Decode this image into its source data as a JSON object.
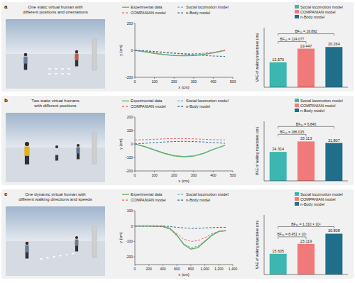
{
  "panels": [
    {
      "letter": "a",
      "caption": [
        "One static virtual human with",
        "different positions and orientations"
      ]
    },
    {
      "letter": "b",
      "caption": [
        "Two static virtual humans",
        "with different positions"
      ]
    },
    {
      "letter": "c",
      "caption": [
        "One dynamic virtual human with",
        "different walking directions and speeds"
      ]
    }
  ],
  "chart_data": [
    {
      "type": "line",
      "x_label": "x (cm)",
      "y_label": "y (cm)",
      "legend": "top",
      "x": [
        0,
        50,
        100,
        150,
        200,
        250,
        300,
        350,
        400,
        460
      ],
      "xlim": [
        0,
        500
      ],
      "xticks": [
        0,
        100,
        200,
        300,
        400,
        500
      ],
      "ylim": [
        -200,
        200
      ],
      "yticks": [
        -200,
        0,
        200
      ],
      "series": [
        {
          "name": "Experimental data",
          "color": "#6aaa50",
          "line_style": "solid",
          "values": [
            0,
            -10,
            -22,
            -32,
            -38,
            -40,
            -38,
            -30,
            -18,
            0
          ]
        },
        {
          "name": "Social locomotion model",
          "color": "#4fbfc6",
          "line_style": "dashed",
          "values": [
            0,
            -9,
            -20,
            -30,
            -36,
            -38,
            -36,
            -29,
            -17,
            0
          ]
        },
        {
          "name": "COMPANIAN model",
          "color": "#e8606a",
          "line_style": "dashed",
          "values": [
            0,
            -5,
            -12,
            -18,
            -22,
            -25,
            -25,
            -22,
            -15,
            0
          ]
        },
        {
          "name": "n-Body model",
          "color": "#2c6e96",
          "line_style": "dashed",
          "values": [
            0,
            -3,
            -8,
            -14,
            -20,
            -26,
            -32,
            -38,
            -42,
            -45
          ]
        }
      ]
    },
    {
      "type": "bar",
      "y_label": "MAE of walking trajectories (cm)",
      "legend": "top-right",
      "data_labels": true,
      "tick_labels": false,
      "categories": [
        "Social locomotion model",
        "COMPANIAN model",
        "n-Body model"
      ],
      "values": [
        12.57,
        19.447,
        20.264
      ],
      "value_labels": [
        "12.570",
        "19.447",
        "20.264"
      ],
      "colors": [
        "#3bb6b0",
        "#f07a7a",
        "#1f6f8b"
      ],
      "ylim": [
        0,
        30
      ],
      "comparisons": [
        {
          "label": "BF₁₀ = 124.077",
          "between": [
            "Social locomotion model",
            "COMPANIAN model"
          ]
        },
        {
          "label": "BF₁₀ = 19.892",
          "between": [
            "Social locomotion model",
            "n-Body model"
          ]
        }
      ]
    },
    {
      "type": "line",
      "x_label": "x (cm)",
      "y_label": "y (cm)",
      "legend": "top",
      "x": [
        0,
        50,
        100,
        150,
        200,
        250,
        300,
        350,
        400,
        460
      ],
      "xlim": [
        0,
        500
      ],
      "xticks": [
        0,
        100,
        200,
        300,
        400,
        500
      ],
      "ylim": [
        -200,
        200
      ],
      "yticks": [
        -200,
        -100,
        0,
        100,
        200
      ],
      "series": [
        {
          "name": "Experimental data",
          "color": "#6aaa50",
          "line_style": "solid",
          "values": [
            0,
            -20,
            -45,
            -70,
            -88,
            -95,
            -90,
            -70,
            -40,
            -10
          ]
        },
        {
          "name": "Social locomotion model",
          "color": "#4fbfc6",
          "line_style": "dashed",
          "values": [
            0,
            -18,
            -42,
            -66,
            -84,
            -92,
            -88,
            -68,
            -40,
            -10
          ]
        },
        {
          "name": "COMPANIAN model",
          "color": "#e8606a",
          "line_style": "dashed",
          "values": [
            30,
            32,
            35,
            38,
            40,
            40,
            38,
            35,
            32,
            30
          ]
        },
        {
          "name": "n-Body model",
          "color": "#2c6e96",
          "line_style": "dashed",
          "values": [
            0,
            5,
            10,
            15,
            18,
            20,
            18,
            15,
            10,
            5
          ]
        }
      ]
    },
    {
      "type": "bar",
      "y_label": "MAE of walking trajectories (cm)",
      "legend": "top-right",
      "data_labels": true,
      "tick_labels": false,
      "categories": [
        "Social locomotion model",
        "COMPANIAN model",
        "n-Body model"
      ],
      "values": [
        24.314,
        33.113,
        31.807
      ],
      "value_labels": [
        "24.314",
        "33.113",
        "31.807"
      ],
      "colors": [
        "#3bb6b0",
        "#f07a7a",
        "#1f6f8b"
      ],
      "ylim": [
        0,
        50
      ],
      "comparisons": [
        {
          "label": "BF₁₀ = 186.015",
          "between": [
            "Social locomotion model",
            "COMPANIAN model"
          ]
        },
        {
          "label": "BF₁₀ = 6.846",
          "between": [
            "Social locomotion model",
            "n-Body model"
          ]
        }
      ]
    },
    {
      "type": "line",
      "x_label": "x (cm)",
      "y_label": "y (cm)",
      "legend": "top",
      "x": [
        0,
        200,
        400,
        500,
        600,
        700,
        800,
        900,
        1000,
        1100,
        1200,
        1300
      ],
      "xlim": [
        0,
        1400
      ],
      "xticks": [
        0,
        200,
        400,
        600,
        800,
        {
          "value": 1000,
          "label": "1,000"
        },
        {
          "value": 1200,
          "label": "1,200"
        },
        {
          "value": 1400,
          "label": "1,400"
        }
      ],
      "ylim": [
        -250,
        100
      ],
      "yticks": [
        -200,
        -100,
        0,
        100
      ],
      "series": [
        {
          "name": "Experimental data",
          "color": "#6aaa50",
          "line_style": "solid",
          "values": [
            0,
            0,
            -2,
            -15,
            -60,
            -120,
            -150,
            -140,
            -100,
            -60,
            -35,
            -30
          ]
        },
        {
          "name": "Social locomotion model",
          "color": "#4fbfc6",
          "line_style": "dashed",
          "values": [
            0,
            0,
            -3,
            -20,
            -65,
            -115,
            -140,
            -130,
            -95,
            -60,
            -35,
            -30
          ]
        },
        {
          "name": "COMPANIAN model",
          "color": "#e8606a",
          "line_style": "dashed",
          "values": [
            0,
            0,
            -5,
            -20,
            -50,
            -85,
            -100,
            -95,
            -75,
            -50,
            -35,
            -30
          ]
        },
        {
          "name": "n-Body model",
          "color": "#2c6e96",
          "line_style": "dashed",
          "values": [
            0,
            0,
            0,
            -3,
            -8,
            -12,
            -15,
            -15,
            -12,
            -10,
            -8,
            -8
          ]
        }
      ]
    },
    {
      "type": "bar",
      "y_label": "MAE of walking trajectories (cm)",
      "legend": "top-right",
      "data_labels": true,
      "tick_labels": false,
      "categories": [
        "Social locomotion model",
        "COMPANIAN model",
        "n-Body model"
      ],
      "values": [
        15.605,
        23.119,
        30.808
      ],
      "value_labels": [
        "15.605",
        "23.119",
        "30.808"
      ],
      "colors": [
        "#3bb6b0",
        "#f07a7a",
        "#1f6f8b"
      ],
      "ylim": [
        0,
        45
      ],
      "comparisons": [
        {
          "label": "BF₁₀ = 8.451 × 10⁵",
          "between": [
            "Social locomotion model",
            "COMPANIAN model"
          ]
        },
        {
          "label": "BF₁₀ = 1.310 × 10⁶",
          "between": [
            "Social locomotion model",
            "n-Body model"
          ]
        }
      ]
    }
  ]
}
